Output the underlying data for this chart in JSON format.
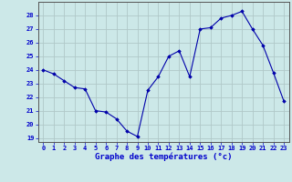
{
  "hours": [
    0,
    1,
    2,
    3,
    4,
    5,
    6,
    7,
    8,
    9,
    10,
    11,
    12,
    13,
    14,
    15,
    16,
    17,
    18,
    19,
    20,
    21,
    22,
    23
  ],
  "temperatures": [
    24.0,
    23.7,
    23.2,
    22.7,
    22.6,
    21.0,
    20.9,
    20.4,
    19.5,
    19.1,
    22.5,
    23.5,
    25.0,
    25.4,
    23.5,
    27.0,
    27.1,
    27.8,
    28.0,
    28.3,
    27.0,
    25.8,
    23.8,
    21.7
  ],
  "title": "Graphe des températures (°c)",
  "ylim_min": 18.7,
  "ylim_max": 29.0,
  "yticks": [
    19,
    20,
    21,
    22,
    23,
    24,
    25,
    26,
    27,
    28
  ],
  "xticks": [
    0,
    1,
    2,
    3,
    4,
    5,
    6,
    7,
    8,
    9,
    10,
    11,
    12,
    13,
    14,
    15,
    16,
    17,
    18,
    19,
    20,
    21,
    22,
    23
  ],
  "line_color": "#0000aa",
  "marker": "D",
  "marker_size": 1.8,
  "bg_color": "#cce8e8",
  "grid_color": "#b0c8c8",
  "tick_color": "#0000cc",
  "title_color": "#0000cc",
  "tick_fontsize": 5.0,
  "title_fontsize": 6.5
}
